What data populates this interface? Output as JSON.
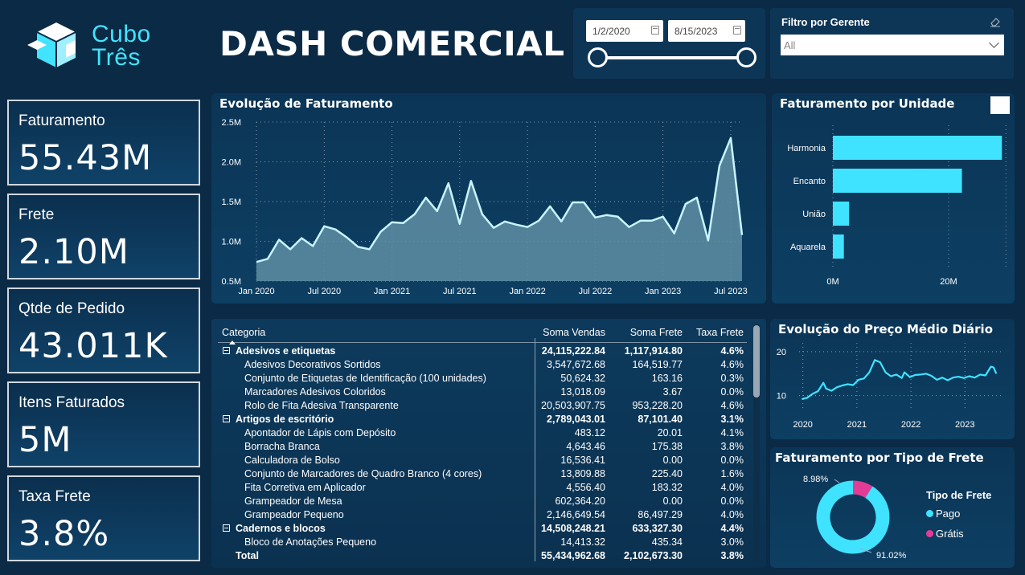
{
  "brand": {
    "logo_line1": "Cubo",
    "logo_line2": "Três"
  },
  "title": "DASH COMERCIAL",
  "date_filter": {
    "start": "1/2/2020",
    "end": "8/15/2023"
  },
  "gerente_filter": {
    "title": "Filtro por Gerente",
    "selected": "All"
  },
  "kpis": [
    {
      "label": "Faturamento",
      "value": "55.43M"
    },
    {
      "label": "Frete",
      "value": "2.10M"
    },
    {
      "label": "Qtde de Pedido",
      "value": "43.011K"
    },
    {
      "label": "Itens Faturados",
      "value": "5M"
    },
    {
      "label": "Taxa Frete",
      "value": "3.8%"
    }
  ],
  "colors": {
    "accent": "#3fe3ff",
    "pink": "#e23c96",
    "background": "#0b2a45",
    "area_fill": "#5f8ea3"
  },
  "chart_data": [
    {
      "type": "area",
      "title": "Evolução de Faturamento",
      "x_ticks": [
        "Jan 2020",
        "Jul 2020",
        "Jan 2021",
        "Jul 2021",
        "Jan 2022",
        "Jul 2022",
        "Jan 2023",
        "Jul 2023"
      ],
      "y_ticks": [
        "2.5M",
        "2.0M",
        "1.5M",
        "1.0M",
        "0.5M"
      ],
      "ylim": [
        0.5,
        2.5
      ],
      "y_unit": "M",
      "x": [
        "2020-01",
        "2020-02",
        "2020-03",
        "2020-04",
        "2020-05",
        "2020-06",
        "2020-07",
        "2020-08",
        "2020-09",
        "2020-10",
        "2020-11",
        "2020-12",
        "2021-01",
        "2021-02",
        "2021-03",
        "2021-04",
        "2021-05",
        "2021-06",
        "2021-07",
        "2021-08",
        "2021-09",
        "2021-10",
        "2021-11",
        "2021-12",
        "2022-01",
        "2022-02",
        "2022-03",
        "2022-04",
        "2022-05",
        "2022-06",
        "2022-07",
        "2022-08",
        "2022-09",
        "2022-10",
        "2022-11",
        "2022-12",
        "2023-01",
        "2023-02",
        "2023-03",
        "2023-04",
        "2023-05",
        "2023-06",
        "2023-07",
        "2023-08"
      ],
      "values": [
        0.74,
        0.78,
        1.02,
        0.9,
        1.04,
        0.94,
        1.19,
        1.15,
        1.05,
        0.93,
        0.9,
        1.12,
        1.24,
        1.23,
        1.34,
        1.55,
        1.38,
        1.73,
        1.22,
        1.76,
        1.34,
        1.17,
        1.25,
        1.21,
        1.18,
        1.26,
        1.44,
        1.25,
        1.49,
        1.49,
        1.3,
        1.33,
        1.31,
        1.18,
        1.26,
        1.26,
        1.31,
        1.1,
        1.47,
        1.55,
        1.01,
        1.95,
        2.3,
        1.08
      ],
      "grid": true
    },
    {
      "type": "bar",
      "orientation": "horizontal",
      "title": "Faturamento por Unidade",
      "categories": [
        "Harmonia",
        "Encanto",
        "União",
        "Aquarela"
      ],
      "values": [
        29.2,
        22.3,
        2.8,
        1.9
      ],
      "x_ticks": [
        "0M",
        "20M"
      ],
      "xlim": [
        0,
        30
      ],
      "grid": true
    },
    {
      "type": "line",
      "title": "Evolução do Preço Médio Diário",
      "x_ticks": [
        "2020",
        "2021",
        "2022",
        "2023"
      ],
      "y_ticks": [
        "20",
        "10"
      ],
      "ylim": [
        7,
        22
      ],
      "x": [
        2020.0,
        2020.1,
        2020.2,
        2020.3,
        2020.4,
        2020.45,
        2020.55,
        2020.65,
        2020.75,
        2020.85,
        2020.95,
        2021.05,
        2021.15,
        2021.25,
        2021.35,
        2021.45,
        2021.55,
        2021.65,
        2021.75,
        2021.85,
        2021.9,
        2022.0,
        2022.1,
        2022.2,
        2022.3,
        2022.4,
        2022.5,
        2022.6,
        2022.7,
        2022.8,
        2022.9,
        2023.0,
        2023.1,
        2023.2,
        2023.3,
        2023.4,
        2023.5,
        2023.55,
        2023.6
      ],
      "values": [
        9.2,
        9.5,
        10.4,
        11.0,
        12.9,
        11.6,
        11.1,
        11.9,
        12.3,
        12.6,
        12.4,
        13.6,
        13.9,
        15.3,
        18.1,
        17.6,
        15.3,
        14.4,
        14.8,
        14.0,
        15.3,
        14.2,
        14.7,
        14.8,
        15.0,
        14.5,
        13.6,
        14.1,
        13.5,
        14.1,
        14.3,
        14.0,
        14.4,
        14.1,
        14.8,
        14.6,
        16.6,
        16.4,
        15.0
      ],
      "grid": true
    },
    {
      "type": "pie",
      "title": "Faturamento por Tipo de Frete",
      "legend_title": "Tipo de Frete",
      "categories": [
        "Pago",
        "Grátis"
      ],
      "values": [
        91.02,
        8.98
      ],
      "labels": [
        "91.02%",
        "8.98%"
      ],
      "legend": "right"
    }
  ],
  "table": {
    "headers": [
      "Categoria",
      "Soma Vendas",
      "Soma Frete",
      "Taxa Frete"
    ],
    "rows": [
      {
        "level": 0,
        "name": "Adesivos e etiquetas",
        "vendas": "24,115,222.84",
        "frete": "1,117,914.80",
        "taxa": "4.6%"
      },
      {
        "level": 1,
        "name": "Adesivos Decorativos Sortidos",
        "vendas": "3,547,672.68",
        "frete": "164,519.77",
        "taxa": "4.6%"
      },
      {
        "level": 1,
        "name": "Conjunto de Etiquetas de Identificação (100 unidades)",
        "vendas": "50,624.32",
        "frete": "163.16",
        "taxa": "0.3%"
      },
      {
        "level": 1,
        "name": "Marcadores Adesivos Coloridos",
        "vendas": "13,018.09",
        "frete": "3.67",
        "taxa": "0.0%"
      },
      {
        "level": 1,
        "name": "Rolo de Fita Adesiva Transparente",
        "vendas": "20,503,907.75",
        "frete": "953,228.20",
        "taxa": "4.6%"
      },
      {
        "level": 0,
        "name": "Artigos de escritório",
        "vendas": "2,789,043.01",
        "frete": "87,101.40",
        "taxa": "3.1%"
      },
      {
        "level": 1,
        "name": "Apontador de Lápis com Depósito",
        "vendas": "483.12",
        "frete": "20.01",
        "taxa": "4.1%"
      },
      {
        "level": 1,
        "name": "Borracha Branca",
        "vendas": "4,643.46",
        "frete": "175.38",
        "taxa": "3.8%"
      },
      {
        "level": 1,
        "name": "Calculadora de Bolso",
        "vendas": "16,536.41",
        "frete": "0.00",
        "taxa": "0.0%"
      },
      {
        "level": 1,
        "name": "Conjunto de Marcadores de Quadro Branco (4 cores)",
        "vendas": "13,809.88",
        "frete": "225.40",
        "taxa": "1.6%"
      },
      {
        "level": 1,
        "name": "Fita Corretiva em Aplicador",
        "vendas": "4,556.40",
        "frete": "183.32",
        "taxa": "4.0%"
      },
      {
        "level": 1,
        "name": "Grampeador de Mesa",
        "vendas": "602,364.20",
        "frete": "0.00",
        "taxa": "0.0%"
      },
      {
        "level": 1,
        "name": "Grampeador Pequeno",
        "vendas": "2,146,649.54",
        "frete": "86,497.29",
        "taxa": "4.0%"
      },
      {
        "level": 0,
        "name": "Cadernos e blocos",
        "vendas": "14,508,248.21",
        "frete": "633,327.30",
        "taxa": "4.4%"
      },
      {
        "level": 1,
        "name": "Bloco de Anotações Pequeno",
        "vendas": "14,413.32",
        "frete": "435.34",
        "taxa": "3.0%"
      },
      {
        "level": -1,
        "name": "Total",
        "vendas": "55,434,962.68",
        "frete": "2,102,673.30",
        "taxa": "3.8%"
      }
    ]
  }
}
